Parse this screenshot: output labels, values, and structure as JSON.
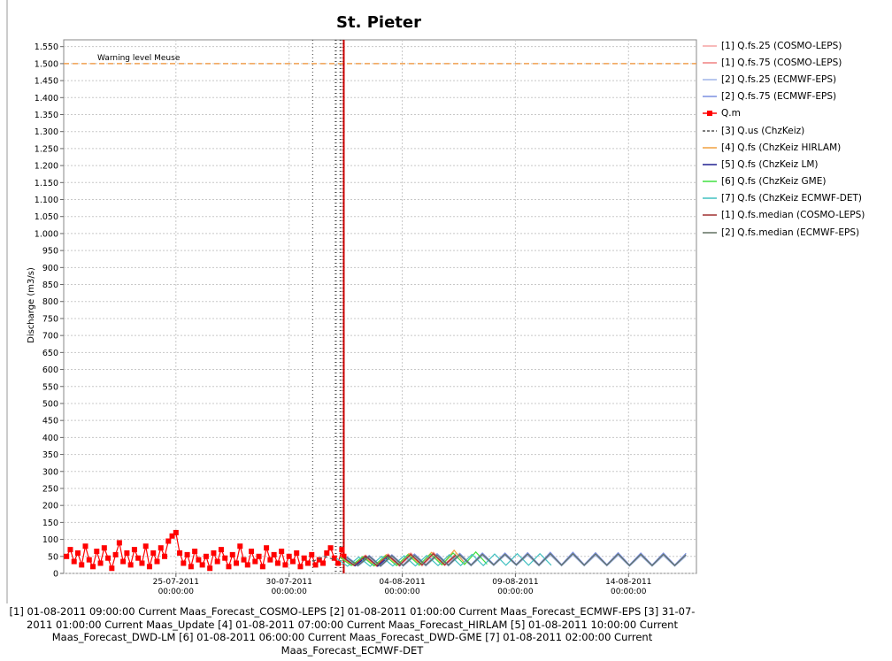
{
  "chart_data": {
    "type": "line",
    "title": "St. Pieter",
    "y_label": "Discharge (m3/s)",
    "ylim": [
      0,
      1570
    ],
    "yticks": [
      0,
      50,
      100,
      150,
      200,
      250,
      300,
      350,
      400,
      450,
      500,
      550,
      600,
      650,
      700,
      750,
      800,
      850,
      900,
      950,
      {
        "value": 1000,
        "label": "1.000"
      },
      {
        "value": 1050,
        "label": "1.050"
      },
      {
        "value": 1100,
        "label": "1.100"
      },
      {
        "value": 1150,
        "label": "1.150"
      },
      {
        "value": 1200,
        "label": "1.200"
      },
      {
        "value": 1250,
        "label": "1.250"
      },
      {
        "value": 1300,
        "label": "1.300"
      },
      {
        "value": 1350,
        "label": "1.350"
      },
      {
        "value": 1400,
        "label": "1.400"
      },
      {
        "value": 1450,
        "label": "1.450"
      },
      {
        "value": 1500,
        "label": "1.500"
      },
      {
        "value": 1550,
        "label": "1.550"
      }
    ],
    "xlim": [
      "2011-07-20 01:00:00",
      "2011-08-17 00:00:00"
    ],
    "xticks": [
      {
        "value": "2011-07-25 00:00:00",
        "label": "25-07-2011 00:00:00"
      },
      {
        "value": "2011-07-30 00:00:00",
        "label": "30-07-2011 00:00:00"
      },
      {
        "value": "2011-08-04 00:00:00",
        "label": "04-08-2011 00:00:00"
      },
      {
        "value": "2011-08-09 00:00:00",
        "label": "09-08-2011 00:00:00"
      },
      {
        "value": "2011-08-14 00:00:00",
        "label": "14-08-2011 00:00:00"
      }
    ],
    "grid": true,
    "warning_level": 1500,
    "warning_label": "Warning level Meuse",
    "warning_color": "#f0a050",
    "markers": [
      "2011-07-31 01:00:00",
      "2011-08-01 01:00:00",
      "2011-08-01 02:00:00",
      "2011-08-01 06:00:00",
      "2011-08-01 07:00:00",
      "2011-08-01 09:00:00"
    ],
    "now_line": "2011-08-01 10:00:00",
    "now_color": "#cc0000",
    "series": [
      {
        "name": "[1] Q.fs.25  (COSMO-LEPS)",
        "color": "#f5a3a3",
        "x": [
          "2011-08-01 09:00:00",
          "2011-08-01 21:00:00",
          "2011-08-02 09:00:00",
          "2011-08-02 21:00:00",
          "2011-08-03 09:00:00",
          "2011-08-03 21:00:00",
          "2011-08-04 09:00:00",
          "2011-08-04 21:00:00",
          "2011-08-05 09:00:00",
          "2011-08-05 21:00:00",
          "2011-08-06 09:00:00"
        ],
        "values": [
          45,
          22,
          48,
          20,
          50,
          21,
          52,
          22,
          53,
          23,
          50
        ]
      },
      {
        "name": "[1] Q.fs.75  (COSMO-LEPS)",
        "color": "#f08080",
        "x": [
          "2011-08-01 09:00:00",
          "2011-08-01 21:00:00",
          "2011-08-02 09:00:00",
          "2011-08-02 21:00:00",
          "2011-08-03 09:00:00",
          "2011-08-03 21:00:00",
          "2011-08-04 09:00:00",
          "2011-08-04 21:00:00",
          "2011-08-05 09:00:00",
          "2011-08-05 21:00:00",
          "2011-08-06 09:00:00"
        ],
        "values": [
          50,
          26,
          54,
          25,
          57,
          26,
          60,
          27,
          62,
          28,
          58
        ]
      },
      {
        "name": "[2] Q.fs.25  (ECMWF-EPS)",
        "color": "#a0b4e8",
        "x": [
          "2011-08-01 13:00:00",
          "2011-08-02 01:00:00",
          "2011-08-02 13:00:00",
          "2011-08-03 01:00:00",
          "2011-08-03 13:00:00",
          "2011-08-04 01:00:00",
          "2011-08-04 13:00:00",
          "2011-08-05 01:00:00",
          "2011-08-05 13:00:00",
          "2011-08-06 01:00:00",
          "2011-08-06 13:00:00",
          "2011-08-07 01:00:00",
          "2011-08-07 13:00:00",
          "2011-08-08 01:00:00",
          "2011-08-08 13:00:00",
          "2011-08-09 01:00:00",
          "2011-08-09 13:00:00",
          "2011-08-10 01:00:00",
          "2011-08-10 13:00:00",
          "2011-08-11 01:00:00",
          "2011-08-11 13:00:00",
          "2011-08-12 01:00:00",
          "2011-08-12 13:00:00",
          "2011-08-13 01:00:00",
          "2011-08-13 13:00:00",
          "2011-08-14 01:00:00",
          "2011-08-14 13:00:00",
          "2011-08-15 01:00:00",
          "2011-08-15 13:00:00",
          "2011-08-16 01:00:00",
          "2011-08-16 13:00:00"
        ],
        "values": [
          44,
          21,
          47,
          20,
          49,
          21,
          50,
          22,
          51,
          22,
          52,
          22,
          52,
          23,
          53,
          23,
          53,
          22,
          54,
          22,
          54,
          22,
          53,
          22,
          53,
          21,
          52,
          21,
          52,
          21,
          51
        ]
      },
      {
        "name": "[2] Q.fs.75  (ECMWF-EPS)",
        "color": "#7b8fe0",
        "x": [
          "2011-08-01 13:00:00",
          "2011-08-02 01:00:00",
          "2011-08-02 13:00:00",
          "2011-08-03 01:00:00",
          "2011-08-03 13:00:00",
          "2011-08-04 01:00:00",
          "2011-08-04 13:00:00",
          "2011-08-05 01:00:00",
          "2011-08-05 13:00:00",
          "2011-08-06 01:00:00",
          "2011-08-06 13:00:00",
          "2011-08-07 01:00:00",
          "2011-08-07 13:00:00",
          "2011-08-08 01:00:00",
          "2011-08-08 13:00:00",
          "2011-08-09 01:00:00",
          "2011-08-09 13:00:00",
          "2011-08-10 01:00:00",
          "2011-08-10 13:00:00",
          "2011-08-11 01:00:00",
          "2011-08-11 13:00:00",
          "2011-08-12 01:00:00",
          "2011-08-12 13:00:00",
          "2011-08-13 01:00:00",
          "2011-08-13 13:00:00",
          "2011-08-14 01:00:00",
          "2011-08-14 13:00:00",
          "2011-08-15 01:00:00",
          "2011-08-15 13:00:00",
          "2011-08-16 01:00:00",
          "2011-08-16 13:00:00"
        ],
        "values": [
          50,
          25,
          53,
          24,
          55,
          25,
          57,
          26,
          58,
          26,
          59,
          26,
          60,
          27,
          60,
          27,
          61,
          26,
          62,
          26,
          62,
          26,
          61,
          26,
          61,
          25,
          60,
          25,
          60,
          25,
          59
        ]
      },
      {
        "name": "Q.m",
        "color": "#ff0000",
        "marker": "square",
        "x": [
          "2011-07-20 04:00:00",
          "2011-07-20 08:00:00",
          "2011-07-20 12:00:00",
          "2011-07-20 16:00:00",
          "2011-07-20 20:00:00",
          "2011-07-21 00:00:00",
          "2011-07-21 04:00:00",
          "2011-07-21 08:00:00",
          "2011-07-21 12:00:00",
          "2011-07-21 16:00:00",
          "2011-07-21 20:00:00",
          "2011-07-22 00:00:00",
          "2011-07-22 04:00:00",
          "2011-07-22 08:00:00",
          "2011-07-22 12:00:00",
          "2011-07-22 16:00:00",
          "2011-07-22 20:00:00",
          "2011-07-23 00:00:00",
          "2011-07-23 04:00:00",
          "2011-07-23 08:00:00",
          "2011-07-23 12:00:00",
          "2011-07-23 16:00:00",
          "2011-07-23 20:00:00",
          "2011-07-24 00:00:00",
          "2011-07-24 04:00:00",
          "2011-07-24 08:00:00",
          "2011-07-24 12:00:00",
          "2011-07-24 16:00:00",
          "2011-07-24 20:00:00",
          "2011-07-25 00:00:00",
          "2011-07-25 04:00:00",
          "2011-07-25 08:00:00",
          "2011-07-25 12:00:00",
          "2011-07-25 16:00:00",
          "2011-07-25 20:00:00",
          "2011-07-26 00:00:00",
          "2011-07-26 04:00:00",
          "2011-07-26 08:00:00",
          "2011-07-26 12:00:00",
          "2011-07-26 16:00:00",
          "2011-07-26 20:00:00",
          "2011-07-27 00:00:00",
          "2011-07-27 04:00:00",
          "2011-07-27 08:00:00",
          "2011-07-27 12:00:00",
          "2011-07-27 16:00:00",
          "2011-07-27 20:00:00",
          "2011-07-28 00:00:00",
          "2011-07-28 04:00:00",
          "2011-07-28 08:00:00",
          "2011-07-28 12:00:00",
          "2011-07-28 16:00:00",
          "2011-07-28 20:00:00",
          "2011-07-29 00:00:00",
          "2011-07-29 04:00:00",
          "2011-07-29 08:00:00",
          "2011-07-29 12:00:00",
          "2011-07-29 16:00:00",
          "2011-07-29 20:00:00",
          "2011-07-30 00:00:00",
          "2011-07-30 04:00:00",
          "2011-07-30 08:00:00",
          "2011-07-30 12:00:00",
          "2011-07-30 16:00:00",
          "2011-07-30 20:00:00",
          "2011-07-31 00:00:00",
          "2011-07-31 04:00:00",
          "2011-07-31 08:00:00",
          "2011-07-31 12:00:00",
          "2011-07-31 16:00:00",
          "2011-07-31 20:00:00",
          "2011-08-01 00:00:00",
          "2011-08-01 04:00:00",
          "2011-08-01 08:00:00",
          "2011-08-01 10:00:00"
        ],
        "values": [
          50,
          70,
          35,
          60,
          25,
          80,
          40,
          20,
          65,
          30,
          75,
          45,
          15,
          55,
          90,
          35,
          60,
          25,
          70,
          45,
          30,
          80,
          20,
          60,
          35,
          75,
          50,
          95,
          110,
          120,
          60,
          30,
          55,
          20,
          65,
          40,
          25,
          50,
          15,
          60,
          35,
          70,
          45,
          20,
          55,
          30,
          80,
          40,
          25,
          65,
          35,
          50,
          20,
          75,
          40,
          55,
          30,
          65,
          25,
          50,
          35,
          60,
          20,
          45,
          30,
          55,
          25,
          40,
          30,
          60,
          75,
          45,
          30,
          70,
          50
        ]
      },
      {
        "name": "[3] Q.us  (ChzKeiz)",
        "color": "#555555",
        "style": "dashed",
        "x": [
          "2011-07-31 01:00:00",
          "2011-07-31 13:00:00",
          "2011-08-01 01:00:00"
        ],
        "values": [
          35,
          50,
          40
        ]
      },
      {
        "name": "[4] Q.fs  (ChzKeiz HIRLAM)",
        "color": "#f0a040",
        "x": [
          "2011-08-01 07:00:00",
          "2011-08-01 19:00:00",
          "2011-08-02 07:00:00",
          "2011-08-02 19:00:00",
          "2011-08-03 07:00:00",
          "2011-08-03 19:00:00",
          "2011-08-04 07:00:00",
          "2011-08-04 19:00:00",
          "2011-08-05 07:00:00",
          "2011-08-05 19:00:00",
          "2011-08-06 07:00:00",
          "2011-08-06 19:00:00"
        ],
        "values": [
          48,
          24,
          50,
          23,
          55,
          25,
          58,
          26,
          62,
          27,
          68,
          28
        ]
      },
      {
        "name": "[5] Q.fs  (ChzKeiz LM)",
        "color": "#202090",
        "x": [
          "2011-08-01 10:00:00",
          "2011-08-01 22:00:00",
          "2011-08-02 10:00:00",
          "2011-08-02 22:00:00",
          "2011-08-03 10:00:00",
          "2011-08-03 22:00:00"
        ],
        "values": [
          46,
          22,
          49,
          21,
          51,
          22
        ]
      },
      {
        "name": "[6] Q.fs  (ChzKeiz GME)",
        "color": "#40e040",
        "x": [
          "2011-08-01 06:00:00",
          "2011-08-01 18:00:00",
          "2011-08-02 06:00:00",
          "2011-08-02 18:00:00",
          "2011-08-03 06:00:00",
          "2011-08-03 18:00:00",
          "2011-08-04 06:00:00",
          "2011-08-04 18:00:00",
          "2011-08-05 06:00:00",
          "2011-08-05 18:00:00",
          "2011-08-06 06:00:00",
          "2011-08-06 18:00:00",
          "2011-08-07 06:00:00",
          "2011-08-07 18:00:00"
        ],
        "values": [
          47,
          23,
          49,
          22,
          52,
          23,
          55,
          24,
          57,
          25,
          60,
          26,
          63,
          27
        ]
      },
      {
        "name": "[7] Q.fs  (ChzKeiz ECMWF-DET)",
        "color": "#40c0c0",
        "x": [
          "2011-08-01 02:00:00",
          "2011-08-01 14:00:00",
          "2011-08-02 02:00:00",
          "2011-08-02 14:00:00",
          "2011-08-03 02:00:00",
          "2011-08-03 14:00:00",
          "2011-08-04 02:00:00",
          "2011-08-04 14:00:00",
          "2011-08-05 02:00:00",
          "2011-08-05 14:00:00",
          "2011-08-06 02:00:00",
          "2011-08-06 14:00:00",
          "2011-08-07 02:00:00",
          "2011-08-07 14:00:00",
          "2011-08-08 02:00:00",
          "2011-08-08 14:00:00",
          "2011-08-09 02:00:00",
          "2011-08-09 14:00:00",
          "2011-08-10 02:00:00",
          "2011-08-10 14:00:00"
        ],
        "values": [
          45,
          21,
          48,
          21,
          50,
          22,
          52,
          22,
          53,
          23,
          55,
          23,
          56,
          23,
          57,
          24,
          58,
          24,
          58,
          24
        ]
      },
      {
        "name": "[1] Q.fs.median  (COSMO-LEPS)",
        "color": "#a03030",
        "x": [
          "2011-08-01 09:00:00",
          "2011-08-01 21:00:00",
          "2011-08-02 09:00:00",
          "2011-08-02 21:00:00",
          "2011-08-03 09:00:00",
          "2011-08-03 21:00:00",
          "2011-08-04 09:00:00",
          "2011-08-04 21:00:00",
          "2011-08-05 09:00:00",
          "2011-08-05 21:00:00",
          "2011-08-06 09:00:00"
        ],
        "values": [
          47,
          24,
          51,
          23,
          54,
          24,
          56,
          25,
          58,
          25,
          54
        ]
      },
      {
        "name": "[2] Q.fs.median  (ECMWF-EPS)",
        "color": "#607060",
        "x": [
          "2011-08-01 13:00:00",
          "2011-08-02 01:00:00",
          "2011-08-02 13:00:00",
          "2011-08-03 01:00:00",
          "2011-08-03 13:00:00",
          "2011-08-04 01:00:00",
          "2011-08-04 13:00:00",
          "2011-08-05 01:00:00",
          "2011-08-05 13:00:00",
          "2011-08-06 01:00:00",
          "2011-08-06 13:00:00",
          "2011-08-07 01:00:00",
          "2011-08-07 13:00:00",
          "2011-08-08 01:00:00",
          "2011-08-08 13:00:00",
          "2011-08-09 01:00:00",
          "2011-08-09 13:00:00",
          "2011-08-10 01:00:00",
          "2011-08-10 13:00:00",
          "2011-08-11 01:00:00",
          "2011-08-11 13:00:00",
          "2011-08-12 01:00:00",
          "2011-08-12 13:00:00",
          "2011-08-13 01:00:00",
          "2011-08-13 13:00:00",
          "2011-08-14 01:00:00",
          "2011-08-14 13:00:00",
          "2011-08-15 01:00:00",
          "2011-08-15 13:00:00",
          "2011-08-16 01:00:00",
          "2011-08-16 13:00:00"
        ],
        "values": [
          47,
          23,
          50,
          22,
          52,
          23,
          53,
          24,
          54,
          24,
          55,
          24,
          56,
          25,
          56,
          25,
          57,
          24,
          58,
          24,
          58,
          24,
          57,
          24,
          57,
          23,
          56,
          23,
          56,
          23,
          55
        ]
      }
    ],
    "caption": "[1] 01-08-2011 09:00:00 Current Maas_Forecast_COSMO-LEPS [2] 01-08-2011 01:00:00 Current Maas_Forecast_ECMWF-EPS [3] 31-07-2011 01:00:00 Current Maas_Update [4] 01-08-2011 07:00:00 Current Maas_Forecast_HIRLAM [5] 01-08-2011 10:00:00 Current Maas_Forecast_DWD-LM [6] 01-08-2011 06:00:00 Current Maas_Forecast_DWD-GME [7] 01-08-2011 02:00:00 Current Maas_Forecast_ECMWF-DET"
  }
}
